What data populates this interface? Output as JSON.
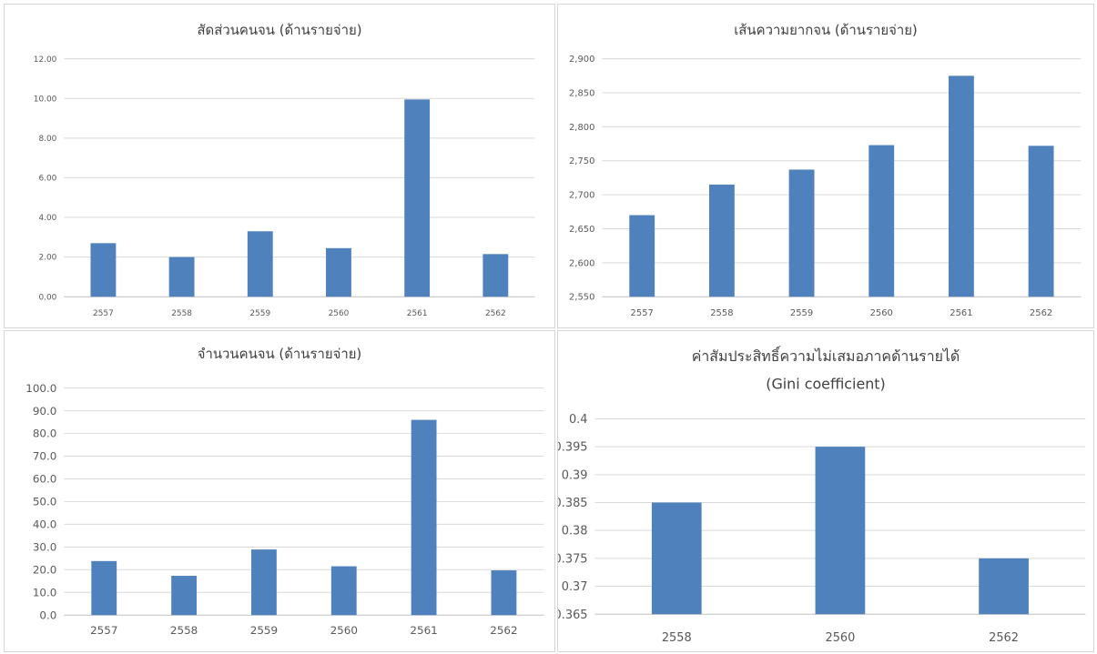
{
  "chart_data": [
    {
      "type": "bar",
      "title": "สัดส่วนคนจน (ด้านรายจ่าย)",
      "categories": [
        "2557",
        "2558",
        "2559",
        "2560",
        "2561",
        "2562"
      ],
      "values": [
        2.7,
        2.0,
        3.3,
        2.45,
        9.95,
        2.15
      ],
      "ylim": [
        0,
        12
      ],
      "yticks": [
        "0.00",
        "2.00",
        "4.00",
        "6.00",
        "8.00",
        "10.00",
        "12.00"
      ],
      "grid": true,
      "bar_color": "#4f81bd"
    },
    {
      "type": "bar",
      "title": "เส้นความยากจน (ด้านรายจ่าย)",
      "categories": [
        "2557",
        "2558",
        "2559",
        "2560",
        "2561",
        "2562"
      ],
      "values": [
        2670,
        2715,
        2737,
        2773,
        2875,
        2772
      ],
      "ylim": [
        2550,
        2900
      ],
      "yticks": [
        "2,550",
        "2,600",
        "2,650",
        "2,700",
        "2,750",
        "2,800",
        "2,850",
        "2,900"
      ],
      "grid": true,
      "bar_color": "#4f81bd"
    },
    {
      "type": "bar",
      "title": "จำนวนคนจน (ด้านรายจ่าย)",
      "categories": [
        "2557",
        "2558",
        "2559",
        "2560",
        "2561",
        "2562"
      ],
      "values": [
        23.8,
        17.3,
        28.9,
        21.5,
        86.0,
        19.7
      ],
      "ylim": [
        0,
        100
      ],
      "yticks": [
        "0.0",
        "10.0",
        "20.0",
        "30.0",
        "40.0",
        "50.0",
        "60.0",
        "70.0",
        "80.0",
        "90.0",
        "100.0"
      ],
      "grid": true,
      "bar_color": "#4f81bd"
    },
    {
      "type": "bar",
      "title": "ค่าสัมประสิทธิ์ความไม่เสมอภาคด้านรายได้",
      "subtitle": "(Gini coefficient)",
      "categories": [
        "2558",
        "2560",
        "2562"
      ],
      "values": [
        0.385,
        0.395,
        0.375
      ],
      "ylim": [
        0.365,
        0.4
      ],
      "yticks": [
        "0.365",
        "0.37",
        "0.375",
        "0.38",
        "0.385",
        "0.39",
        "0.395",
        "0.4"
      ],
      "grid": true,
      "bar_color": "#4f81bd"
    }
  ]
}
